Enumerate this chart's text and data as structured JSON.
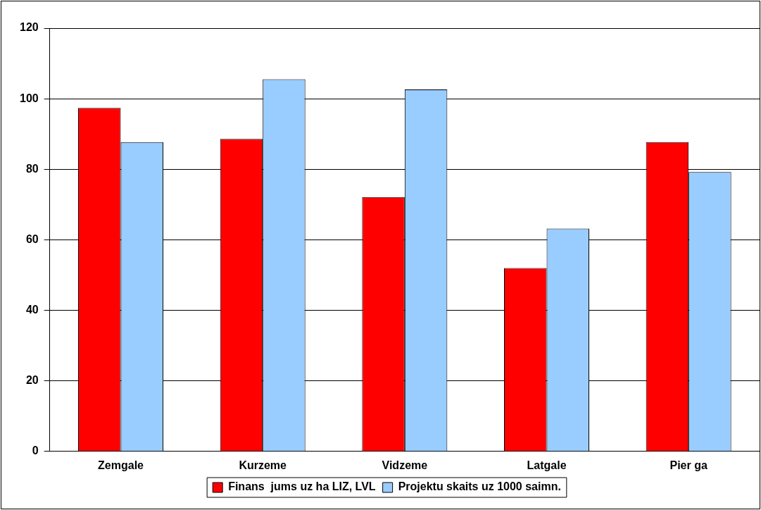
{
  "chart_data": {
    "type": "bar",
    "categories": [
      "Zemgale",
      "Kurzeme",
      "Vidzeme",
      "Latgale",
      "Pier ga"
    ],
    "series": [
      {
        "name": "Finans  jums uz ha LIZ, LVL",
        "color": "#ff0000",
        "values": [
          97.4,
          88.6,
          72.1,
          52,
          87.7
        ]
      },
      {
        "name": "Projektu skaits uz 1000 saimn.",
        "color": "#99ccff",
        "values": [
          87.7,
          105.5,
          102.6,
          63.2,
          79.2
        ]
      }
    ],
    "ylim": [
      0,
      120
    ],
    "yticks": [
      0,
      20,
      40,
      60,
      80,
      100,
      120
    ],
    "grid": "y",
    "legend": "bottom"
  }
}
